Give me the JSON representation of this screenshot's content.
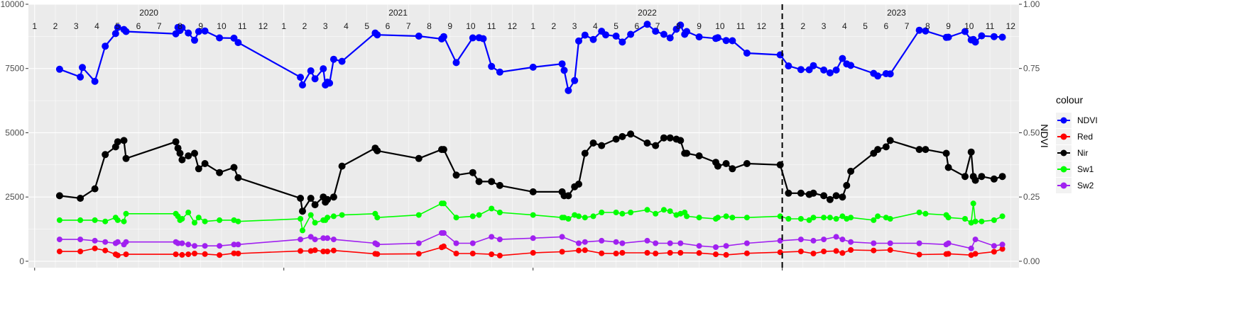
{
  "chart_data": {
    "type": "line",
    "x_unit": "months (1 = Jan 2020)",
    "years": [
      "2020",
      "2021",
      "2022",
      "2023"
    ],
    "month_labels": [
      "1",
      "2",
      "3",
      "4",
      "5",
      "6",
      "7",
      "8",
      "9",
      "10",
      "11",
      "12"
    ],
    "xlim": [
      0.7,
      48.4
    ],
    "ylim": [
      -250,
      10000
    ],
    "y_ticks": [
      0,
      2500,
      5000,
      7500,
      10000
    ],
    "y_tick_labels": [
      "0",
      "2500",
      "5000",
      "7500",
      "10000"
    ],
    "y2_ticks": [
      0,
      0.25,
      0.5,
      0.75,
      1.0
    ],
    "y2_tick_labels": [
      "0.00",
      "0.25",
      "0.50",
      "0.75",
      "1.00"
    ],
    "y2_label": "NDVI",
    "vline_x": 37,
    "legend_title": "colour",
    "legend_position": "right",
    "x_bottom_ticks": [
      1,
      13,
      25,
      37
    ],
    "series": [
      {
        "name": "NDVI",
        "color": "#0000ff",
        "x": [
          2.2,
          3.2,
          3.3,
          3.9,
          4.4,
          4.9,
          5.0,
          5.3,
          5.4,
          7.8,
          7.9,
          8.0,
          8.1,
          8.4,
          8.7,
          8.9,
          9.2,
          9.9,
          10.6,
          10.8,
          13.8,
          13.9,
          14.3,
          14.5,
          14.9,
          15.0,
          15.1,
          15.2,
          15.4,
          15.8,
          17.4,
          17.5,
          19.5,
          20.6,
          20.7,
          21.3,
          22.1,
          22.4,
          22.6,
          23.0,
          23.4,
          25.0,
          26.4,
          26.5,
          26.7,
          27.0,
          27.2,
          27.5,
          27.9,
          28.3,
          28.5,
          29.0,
          29.3,
          29.7,
          30.5,
          30.9,
          31.3,
          31.6,
          31.9,
          32.1,
          32.3,
          32.4,
          33.0,
          33.8,
          33.9,
          34.3,
          34.6,
          35.3,
          36.9,
          37.3,
          37.9,
          38.3,
          38.5,
          39.0,
          39.3,
          39.6,
          39.9,
          40.1,
          40.3,
          41.4,
          41.6,
          42.0,
          42.2,
          43.6,
          43.9,
          44.9,
          45.0,
          45.8,
          46.1,
          46.2,
          46.3,
          46.6,
          47.2,
          47.6
        ],
        "values": [
          0.747,
          0.717,
          0.754,
          0.7,
          0.837,
          0.886,
          0.91,
          0.902,
          0.894,
          0.885,
          0.91,
          0.898,
          0.909,
          0.888,
          0.86,
          0.894,
          0.896,
          0.869,
          0.868,
          0.851,
          0.716,
          0.686,
          0.741,
          0.71,
          0.749,
          0.686,
          0.697,
          0.693,
          0.786,
          0.778,
          0.888,
          0.881,
          0.876,
          0.865,
          0.874,
          0.773,
          0.869,
          0.87,
          0.866,
          0.758,
          0.736,
          0.755,
          0.768,
          0.743,
          0.664,
          0.703,
          0.857,
          0.88,
          0.863,
          0.895,
          0.881,
          0.876,
          0.853,
          0.883,
          0.922,
          0.895,
          0.883,
          0.869,
          0.903,
          0.919,
          0.883,
          0.894,
          0.873,
          0.867,
          0.87,
          0.859,
          0.858,
          0.81,
          0.803,
          0.76,
          0.746,
          0.745,
          0.761,
          0.744,
          0.733,
          0.744,
          0.789,
          0.768,
          0.762,
          0.731,
          0.721,
          0.73,
          0.729,
          0.899,
          0.896,
          0.871,
          0.872,
          0.894,
          0.861,
          0.863,
          0.853,
          0.877,
          0.874,
          0.872
        ],
        "marker_size": 5
      },
      {
        "name": "Red",
        "color": "#ff0000",
        "x": [
          2.2,
          3.2,
          3.9,
          4.4,
          4.9,
          5.0,
          5.4,
          7.8,
          8.1,
          8.4,
          8.7,
          9.2,
          9.9,
          10.6,
          10.8,
          13.8,
          14.3,
          14.5,
          14.9,
          15.1,
          15.4,
          17.4,
          17.5,
          19.5,
          20.6,
          20.7,
          21.3,
          22.1,
          23.0,
          23.4,
          25.0,
          26.4,
          27.2,
          27.5,
          28.3,
          29.0,
          29.3,
          30.5,
          30.9,
          31.6,
          32.1,
          33.0,
          33.8,
          34.3,
          35.3,
          36.9,
          37.9,
          38.5,
          39.0,
          39.6,
          39.9,
          40.3,
          41.4,
          42.2,
          43.6,
          44.9,
          45.0,
          46.1,
          46.3,
          47.2,
          47.6
        ],
        "values": [
          380,
          380,
          500,
          420,
          270,
          230,
          270,
          270,
          250,
          270,
          300,
          280,
          240,
          310,
          300,
          400,
          400,
          430,
          380,
          380,
          420,
          290,
          280,
          290,
          540,
          580,
          300,
          300,
          270,
          220,
          330,
          370,
          420,
          430,
          310,
          300,
          330,
          330,
          300,
          330,
          330,
          320,
          270,
          250,
          310,
          350,
          380,
          300,
          380,
          400,
          320,
          440,
          420,
          440,
          260,
          280,
          290,
          240,
          290,
          370,
          480
        ],
        "marker_size": 4
      },
      {
        "name": "Nir",
        "color": "#000000",
        "x": [
          2.2,
          3.2,
          3.9,
          4.4,
          4.9,
          5.0,
          5.3,
          5.4,
          7.8,
          7.9,
          8.0,
          8.1,
          8.4,
          8.7,
          8.9,
          9.2,
          9.9,
          10.6,
          10.8,
          13.8,
          13.9,
          14.3,
          14.5,
          14.9,
          15.0,
          15.1,
          15.4,
          15.8,
          17.4,
          17.5,
          19.5,
          20.6,
          20.7,
          21.3,
          22.1,
          22.4,
          23.0,
          23.4,
          25.0,
          26.4,
          26.5,
          26.7,
          27.0,
          27.2,
          27.5,
          27.9,
          28.3,
          29.0,
          29.3,
          29.7,
          30.5,
          30.9,
          31.3,
          31.6,
          31.9,
          32.1,
          32.3,
          32.4,
          33.0,
          33.8,
          33.9,
          34.3,
          34.6,
          35.3,
          36.9,
          37.3,
          37.9,
          38.3,
          38.5,
          39.0,
          39.3,
          39.6,
          39.9,
          40.1,
          40.3,
          41.4,
          41.6,
          42.0,
          42.2,
          43.6,
          43.9,
          44.9,
          45.0,
          45.8,
          46.1,
          46.2,
          46.3,
          46.6,
          47.2,
          47.6
        ],
        "values": [
          2550,
          2450,
          2820,
          4150,
          4450,
          4650,
          4700,
          4000,
          4650,
          4400,
          4200,
          3950,
          4100,
          4200,
          3600,
          3800,
          3450,
          3650,
          3250,
          2450,
          1950,
          2450,
          2200,
          2500,
          2300,
          2400,
          2500,
          3700,
          4400,
          4300,
          4000,
          4350,
          4350,
          3350,
          3450,
          3100,
          3100,
          2950,
          2700,
          2700,
          2550,
          2550,
          2900,
          3000,
          4200,
          4600,
          4500,
          4750,
          4850,
          4950,
          4600,
          4500,
          4800,
          4800,
          4750,
          4700,
          4200,
          4200,
          4100,
          3850,
          3700,
          3800,
          3600,
          3800,
          3750,
          2650,
          2650,
          2600,
          2650,
          2550,
          2400,
          2550,
          2500,
          2950,
          3500,
          4200,
          4350,
          4450,
          4700,
          4350,
          4350,
          4200,
          3650,
          3300,
          4250,
          3300,
          3150,
          3300,
          3200,
          3300
        ],
        "marker_size": 5
      },
      {
        "name": "Sw1",
        "color": "#00ff00",
        "x": [
          2.2,
          3.2,
          3.9,
          4.4,
          4.9,
          5.0,
          5.3,
          5.4,
          7.8,
          7.9,
          8.0,
          8.1,
          8.4,
          8.7,
          8.9,
          9.2,
          9.9,
          10.6,
          10.8,
          13.8,
          13.9,
          14.3,
          14.5,
          14.9,
          15.0,
          15.1,
          15.4,
          15.8,
          17.4,
          17.5,
          19.5,
          20.6,
          20.7,
          21.3,
          22.1,
          22.4,
          23.0,
          23.4,
          25.0,
          26.4,
          26.5,
          26.7,
          27.0,
          27.2,
          27.5,
          27.9,
          28.3,
          29.0,
          29.3,
          29.7,
          30.5,
          30.9,
          31.3,
          31.6,
          31.9,
          32.1,
          32.3,
          32.4,
          33.0,
          33.8,
          33.9,
          34.3,
          34.6,
          35.3,
          36.9,
          37.3,
          37.9,
          38.3,
          38.5,
          39.0,
          39.3,
          39.6,
          39.9,
          40.1,
          40.3,
          41.4,
          41.6,
          42.0,
          42.2,
          43.6,
          43.9,
          44.9,
          45.0,
          45.8,
          46.1,
          46.2,
          46.3,
          46.6,
          47.2,
          47.6
        ],
        "values": [
          1600,
          1600,
          1600,
          1550,
          1700,
          1600,
          1550,
          1850,
          1850,
          1750,
          1600,
          1650,
          1900,
          1500,
          1700,
          1550,
          1600,
          1600,
          1550,
          1650,
          1200,
          1800,
          1500,
          1600,
          1600,
          1700,
          1750,
          1800,
          1850,
          1700,
          1800,
          2250,
          2250,
          1700,
          1750,
          1800,
          2050,
          1900,
          1800,
          1700,
          1700,
          1650,
          1800,
          1750,
          1700,
          1750,
          1900,
          1900,
          1850,
          1900,
          2000,
          1850,
          2000,
          1950,
          1800,
          1850,
          1900,
          1750,
          1700,
          1650,
          1700,
          1750,
          1700,
          1700,
          1750,
          1650,
          1650,
          1600,
          1700,
          1700,
          1700,
          1650,
          1750,
          1650,
          1700,
          1600,
          1750,
          1700,
          1650,
          1900,
          1850,
          1800,
          1700,
          1650,
          1500,
          2250,
          1550,
          1550,
          1600,
          1750
        ],
        "marker_size": 4
      },
      {
        "name": "Sw2",
        "color": "#a020f0",
        "x": [
          2.2,
          3.2,
          3.9,
          4.4,
          4.9,
          5.0,
          5.3,
          5.4,
          7.8,
          7.9,
          8.1,
          8.4,
          8.7,
          9.2,
          9.9,
          10.6,
          10.8,
          13.8,
          14.3,
          14.5,
          14.9,
          15.1,
          15.4,
          17.4,
          17.5,
          19.5,
          20.6,
          20.7,
          21.3,
          22.1,
          23.0,
          23.4,
          25.0,
          26.4,
          27.2,
          27.5,
          28.3,
          29.0,
          29.3,
          30.5,
          30.9,
          31.6,
          32.1,
          33.0,
          33.8,
          34.3,
          35.3,
          36.9,
          37.9,
          38.5,
          39.0,
          39.6,
          39.9,
          40.3,
          41.4,
          42.2,
          43.6,
          44.9,
          45.0,
          46.1,
          46.3,
          47.2,
          47.6
        ],
        "values": [
          850,
          850,
          800,
          750,
          700,
          750,
          650,
          750,
          750,
          700,
          700,
          650,
          600,
          600,
          600,
          650,
          650,
          850,
          950,
          850,
          900,
          900,
          850,
          700,
          650,
          700,
          1100,
          1100,
          700,
          700,
          950,
          850,
          900,
          950,
          700,
          750,
          800,
          750,
          700,
          800,
          700,
          700,
          700,
          600,
          550,
          600,
          700,
          800,
          850,
          800,
          850,
          950,
          850,
          750,
          700,
          700,
          700,
          650,
          700,
          500,
          850,
          600,
          650
        ],
        "marker_size": 4
      }
    ]
  }
}
